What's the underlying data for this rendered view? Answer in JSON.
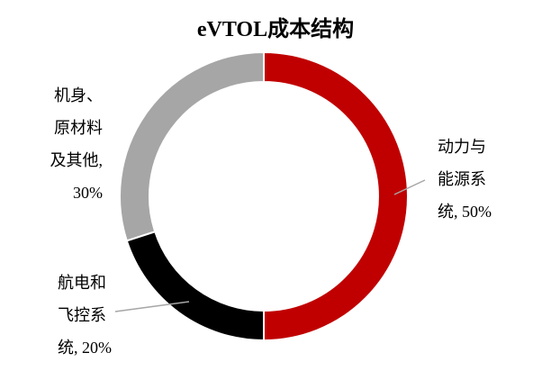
{
  "chart_data": {
    "type": "donut",
    "title": "eVTOL成本结构",
    "categories": [
      "动力与能源系统,",
      "航电和飞控系统,",
      "机身、原材料及其他,"
    ],
    "values": [
      50,
      20,
      30
    ],
    "value_labels": [
      "50%",
      "20%",
      "30%"
    ],
    "colors": [
      "#c00000",
      "#000000",
      "#a6a6a6"
    ]
  }
}
